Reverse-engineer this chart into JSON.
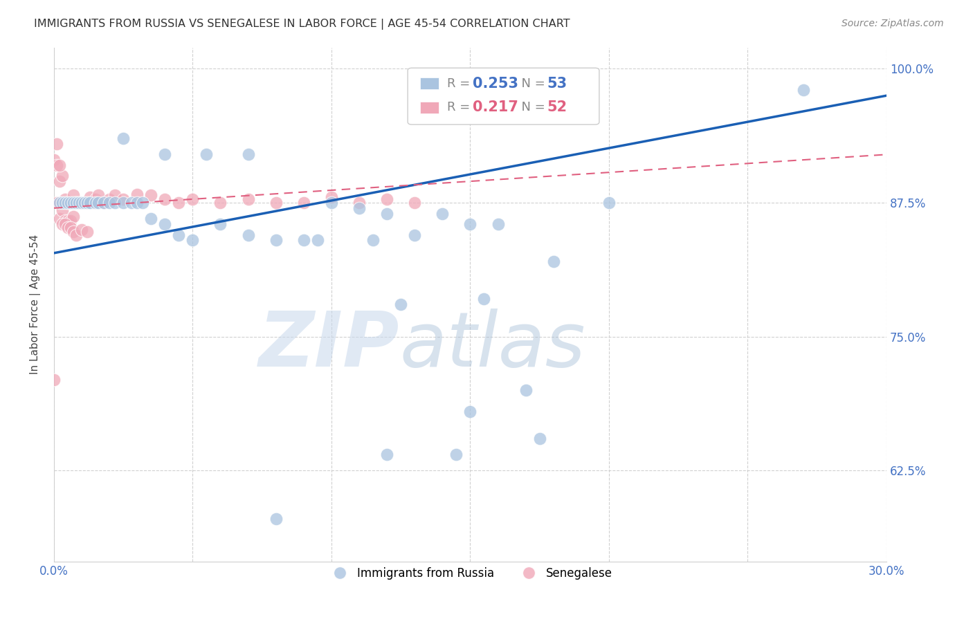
{
  "title": "IMMIGRANTS FROM RUSSIA VS SENEGALESE IN LABOR FORCE | AGE 45-54 CORRELATION CHART",
  "source": "Source: ZipAtlas.com",
  "ylabel": "In Labor Force | Age 45-54",
  "legend_label_blue": "Immigrants from Russia",
  "legend_label_pink": "Senegalese",
  "xlim": [
    0.0,
    0.3
  ],
  "ylim": [
    0.54,
    1.02
  ],
  "yticks": [
    0.625,
    0.75,
    0.875,
    1.0
  ],
  "ytick_labels": [
    "62.5%",
    "75.0%",
    "87.5%",
    "100.0%"
  ],
  "blue_color": "#aac4e0",
  "pink_color": "#f0a8b8",
  "line_blue": "#1a5fb4",
  "line_pink": "#e06080",
  "watermark_zip": "ZIP",
  "watermark_atlas": "atlas",
  "blue_x": [
    0.002,
    0.003,
    0.004,
    0.005,
    0.006,
    0.007,
    0.008,
    0.009,
    0.01,
    0.011,
    0.012,
    0.013,
    0.015,
    0.016,
    0.018,
    0.02,
    0.022,
    0.025,
    0.028,
    0.03,
    0.032,
    0.035,
    0.04,
    0.045,
    0.05,
    0.06,
    0.07,
    0.08,
    0.09,
    0.1,
    0.11,
    0.12,
    0.14,
    0.15,
    0.16,
    0.18,
    0.2,
    0.025,
    0.04,
    0.055,
    0.07,
    0.15,
    0.17,
    0.125,
    0.155,
    0.27,
    0.12,
    0.145,
    0.175,
    0.095,
    0.115,
    0.13,
    0.08
  ],
  "blue_y": [
    0.875,
    0.875,
    0.875,
    0.875,
    0.875,
    0.875,
    0.875,
    0.875,
    0.875,
    0.875,
    0.875,
    0.875,
    0.875,
    0.875,
    0.875,
    0.875,
    0.875,
    0.875,
    0.875,
    0.875,
    0.875,
    0.86,
    0.855,
    0.845,
    0.84,
    0.855,
    0.845,
    0.84,
    0.84,
    0.875,
    0.87,
    0.865,
    0.865,
    0.855,
    0.855,
    0.82,
    0.875,
    0.935,
    0.92,
    0.92,
    0.92,
    0.68,
    0.7,
    0.78,
    0.785,
    0.98,
    0.64,
    0.64,
    0.655,
    0.84,
    0.84,
    0.845,
    0.58
  ],
  "pink_x": [
    0.0,
    0.001,
    0.001,
    0.002,
    0.002,
    0.003,
    0.003,
    0.004,
    0.004,
    0.005,
    0.005,
    0.006,
    0.006,
    0.007,
    0.007,
    0.008,
    0.009,
    0.01,
    0.011,
    0.012,
    0.013,
    0.014,
    0.015,
    0.016,
    0.018,
    0.02,
    0.022,
    0.025,
    0.03,
    0.035,
    0.04,
    0.045,
    0.05,
    0.06,
    0.07,
    0.08,
    0.09,
    0.1,
    0.11,
    0.12,
    0.13,
    0.0,
    0.001,
    0.002,
    0.003,
    0.004,
    0.005,
    0.006,
    0.007,
    0.008,
    0.01,
    0.012
  ],
  "pink_y": [
    0.71,
    0.93,
    0.875,
    0.895,
    0.86,
    0.9,
    0.868,
    0.878,
    0.858,
    0.875,
    0.858,
    0.875,
    0.858,
    0.882,
    0.862,
    0.875,
    0.875,
    0.875,
    0.875,
    0.875,
    0.88,
    0.875,
    0.878,
    0.882,
    0.875,
    0.878,
    0.882,
    0.878,
    0.883,
    0.882,
    0.878,
    0.875,
    0.878,
    0.875,
    0.878,
    0.875,
    0.875,
    0.88,
    0.875,
    0.878,
    0.875,
    0.915,
    0.91,
    0.91,
    0.855,
    0.855,
    0.852,
    0.852,
    0.848,
    0.845,
    0.85,
    0.848
  ]
}
